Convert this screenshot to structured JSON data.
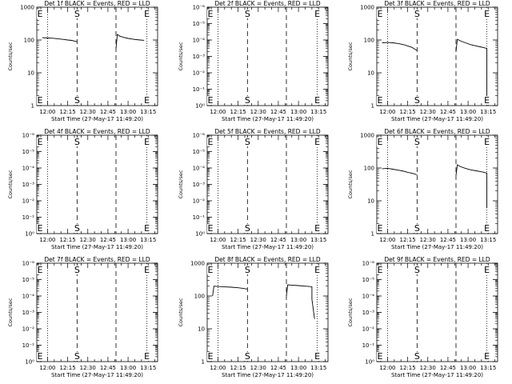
{
  "chart_data": [
    {
      "type": "line",
      "title": "Det 1f BLACK = Events, RED = LLD",
      "xlabel": "Start Time (27-May-17 11:49:20)",
      "ylabel": "Counts/sec",
      "yscale": "log",
      "ylim": [
        1,
        1000
      ],
      "yticks": [
        "1",
        "10",
        "100",
        "1000"
      ],
      "xlim": [
        "11:52",
        "13:22"
      ],
      "xticks": [
        "12:00",
        "12:15",
        "12:30",
        "12:45",
        "13:00",
        "13:15"
      ],
      "dotted_lines": [
        "12:00",
        "13:14"
      ],
      "dashed_lines": [
        "12:22",
        "12:51"
      ],
      "markers": [
        {
          "label": "E",
          "x": "11:52"
        },
        {
          "label": "S",
          "x": "12:22"
        },
        {
          "label": "E",
          "x": "13:14"
        }
      ],
      "series": [
        {
          "color": "#000000",
          "x": [
            "11:56",
            "12:00",
            "12:04",
            "12:08",
            "12:12",
            "12:15",
            "12:18",
            "12:20",
            "12:22"
          ],
          "y": [
            118,
            115,
            113,
            108,
            104,
            100,
            97,
            93,
            89
          ]
        },
        {
          "color": "#000000",
          "x": [
            "12:51",
            "12:52",
            "12:54",
            "12:57",
            "13:00",
            "13:03",
            "13:06",
            "13:09",
            "13:12"
          ],
          "y": [
            55,
            148,
            130,
            120,
            112,
            107,
            103,
            100,
            98
          ]
        }
      ]
    },
    {
      "type": "line",
      "title": "Det 2f BLACK = Events, RED = LLD",
      "xlabel": "Start Time (27-May-17 11:49:20)",
      "ylabel": "Counts/sec",
      "yscale": "log",
      "ylim": [
        1,
        1000000
      ],
      "yticks": [
        "10⁰",
        "10⁻¹",
        "10⁻²",
        "10⁻³",
        "10⁻⁴",
        "10⁻⁵",
        "10⁻⁶"
      ],
      "xlim": [
        "11:52",
        "13:22"
      ],
      "xticks": [
        "12:00",
        "12:15",
        "12:30",
        "12:45",
        "13:00",
        "13:15"
      ],
      "dotted_lines": [
        "12:00",
        "13:14"
      ],
      "dashed_lines": [
        "12:22",
        "12:51"
      ],
      "markers": [
        {
          "label": "E",
          "x": "11:52"
        },
        {
          "label": "S",
          "x": "12:22"
        },
        {
          "label": "E",
          "x": "13:14"
        }
      ],
      "series": []
    },
    {
      "type": "line",
      "title": "Det 3f BLACK = Events, RED = LLD",
      "xlabel": "Start Time (27-May-17 11:49:20)",
      "ylabel": "Counts/sec",
      "yscale": "log",
      "ylim": [
        1,
        1000
      ],
      "yticks": [
        "1",
        "10",
        "100",
        "1000"
      ],
      "xlim": [
        "11:52",
        "13:22"
      ],
      "xticks": [
        "12:00",
        "12:15",
        "12:30",
        "12:45",
        "13:00",
        "13:15"
      ],
      "dotted_lines": [
        "12:00",
        "13:14"
      ],
      "dashed_lines": [
        "12:22",
        "12:51"
      ],
      "markers": [
        {
          "label": "E",
          "x": "11:52"
        },
        {
          "label": "S",
          "x": "12:22"
        },
        {
          "label": "E",
          "x": "13:14"
        }
      ],
      "series": [
        {
          "color": "#000000",
          "x": [
            "11:56",
            "12:00",
            "12:04",
            "12:08",
            "12:12",
            "12:15",
            "12:18",
            "12:20",
            "12:22"
          ],
          "y": [
            82,
            84,
            82,
            78,
            72,
            66,
            60,
            54,
            48
          ]
        },
        {
          "color": "#000000",
          "x": [
            "12:51",
            "12:52",
            "12:54",
            "12:58",
            "13:02",
            "13:06",
            "13:09",
            "13:12",
            "13:14",
            "13:14"
          ],
          "y": [
            45,
            105,
            95,
            82,
            72,
            66,
            62,
            58,
            55,
            1
          ]
        }
      ]
    },
    {
      "type": "line",
      "title": "Det 4f BLACK = Events, RED = LLD",
      "xlabel": "Start Time (27-May-17 11:49:20)",
      "ylabel": "Counts/sec",
      "yscale": "log",
      "ylim": [
        1,
        1000000
      ],
      "yticks": [
        "10⁰",
        "10⁻¹",
        "10⁻²",
        "10⁻³",
        "10⁻⁴",
        "10⁻⁵",
        "10⁻⁶"
      ],
      "xlim": [
        "11:52",
        "13:22"
      ],
      "xticks": [
        "12:00",
        "12:15",
        "12:30",
        "12:45",
        "13:00",
        "13:15"
      ],
      "dotted_lines": [
        "12:00",
        "13:14"
      ],
      "dashed_lines": [
        "12:22",
        "12:51"
      ],
      "markers": [
        {
          "label": "E",
          "x": "11:52"
        },
        {
          "label": "S",
          "x": "12:22"
        },
        {
          "label": "E",
          "x": "13:14"
        }
      ],
      "series": []
    },
    {
      "type": "line",
      "title": "Det 5f BLACK = Events, RED = LLD",
      "xlabel": "Start Time (27-May-17 11:49:20)",
      "ylabel": "Counts/sec",
      "yscale": "log",
      "ylim": [
        1,
        1000000
      ],
      "yticks": [
        "10⁰",
        "10⁻¹",
        "10⁻²",
        "10⁻³",
        "10⁻⁴",
        "10⁻⁵",
        "10⁻⁶"
      ],
      "xlim": [
        "11:52",
        "13:22"
      ],
      "xticks": [
        "12:00",
        "12:15",
        "12:30",
        "12:45",
        "13:00",
        "13:15"
      ],
      "dotted_lines": [
        "12:00",
        "13:14"
      ],
      "dashed_lines": [
        "12:22",
        "12:51"
      ],
      "markers": [
        {
          "label": "E",
          "x": "11:52"
        },
        {
          "label": "S",
          "x": "12:22"
        },
        {
          "label": "E",
          "x": "13:14"
        }
      ],
      "series": []
    },
    {
      "type": "line",
      "title": "Det 6f BLACK = Events, RED = LLD",
      "xlabel": "Start Time (27-May-17 11:49:20)",
      "ylabel": "Counts/sec",
      "yscale": "log",
      "ylim": [
        1,
        1000
      ],
      "yticks": [
        "1",
        "10",
        "100",
        "1000"
      ],
      "xlim": [
        "11:52",
        "13:22"
      ],
      "xticks": [
        "12:00",
        "12:15",
        "12:30",
        "12:45",
        "13:00",
        "13:15"
      ],
      "dotted_lines": [
        "12:00",
        "13:14"
      ],
      "dashed_lines": [
        "12:22",
        "12:51"
      ],
      "markers": [
        {
          "label": "E",
          "x": "11:52"
        },
        {
          "label": "S",
          "x": "12:22"
        },
        {
          "label": "E",
          "x": "13:14"
        }
      ],
      "series": [
        {
          "color": "#000000",
          "x": [
            "11:56",
            "12:00",
            "12:04",
            "12:08",
            "12:12",
            "12:15",
            "12:18",
            "12:20",
            "12:22"
          ],
          "y": [
            95,
            98,
            92,
            86,
            80,
            74,
            70,
            66,
            62
          ]
        },
        {
          "color": "#000000",
          "x": [
            "12:51",
            "12:52",
            "12:54",
            "12:58",
            "13:02",
            "13:06",
            "13:09",
            "13:12",
            "13:14",
            "13:14"
          ],
          "y": [
            60,
            125,
            112,
            98,
            88,
            82,
            78,
            74,
            70,
            6
          ]
        }
      ]
    },
    {
      "type": "line",
      "title": "Det 7f BLACK = Events, RED = LLD",
      "xlabel": "Start Time (27-May-17 11:49:20)",
      "ylabel": "Counts/sec",
      "yscale": "log",
      "ylim": [
        1,
        1000000
      ],
      "yticks": [
        "10⁰",
        "10⁻¹",
        "10⁻²",
        "10⁻³",
        "10⁻⁴",
        "10⁻⁵",
        "10⁻⁶"
      ],
      "xlim": [
        "11:52",
        "13:22"
      ],
      "xticks": [
        "12:00",
        "12:15",
        "12:30",
        "12:45",
        "13:00",
        "13:15"
      ],
      "dotted_lines": [
        "12:00",
        "13:14"
      ],
      "dashed_lines": [
        "12:22",
        "12:51"
      ],
      "markers": [
        {
          "label": "E",
          "x": "11:52"
        },
        {
          "label": "S",
          "x": "12:22"
        },
        {
          "label": "E",
          "x": "13:14"
        }
      ],
      "series": []
    },
    {
      "type": "line",
      "title": "Det 8f BLACK = Events, RED = LLD",
      "xlabel": "Start Time (27-May-17 11:49:20)",
      "ylabel": "Counts/sec",
      "yscale": "log",
      "ylim": [
        1,
        1000
      ],
      "yticks": [
        "1",
        "10",
        "100",
        "1000"
      ],
      "xlim": [
        "11:52",
        "13:22"
      ],
      "xticks": [
        "12:00",
        "12:15",
        "12:30",
        "12:45",
        "13:00",
        "13:15"
      ],
      "dotted_lines": [
        "12:00",
        "13:14"
      ],
      "dashed_lines": [
        "12:22",
        "12:51"
      ],
      "markers": [
        {
          "label": "E",
          "x": "11:52"
        },
        {
          "label": "S",
          "x": "12:22"
        },
        {
          "label": "E",
          "x": "13:14"
        }
      ],
      "series": [
        {
          "color": "#000000",
          "x": [
            "11:56",
            "11:57",
            "12:00",
            "12:05",
            "12:10",
            "12:15",
            "12:18",
            "12:20",
            "12:22"
          ],
          "y": [
            100,
            200,
            195,
            190,
            185,
            178,
            172,
            168,
            162
          ]
        },
        {
          "color": "#000000",
          "x": [
            "12:51",
            "12:52",
            "12:55",
            "13:00",
            "13:05",
            "13:08",
            "13:10",
            "13:10",
            "13:12"
          ],
          "y": [
            100,
            220,
            215,
            208,
            200,
            195,
            190,
            80,
            20
          ]
        }
      ]
    },
    {
      "type": "line",
      "title": "Det 9f BLACK = Events, RED = LLD",
      "xlabel": "Start Time (27-May-17 11:49:20)",
      "ylabel": "Counts/sec",
      "yscale": "log",
      "ylim": [
        1,
        1000000
      ],
      "yticks": [
        "10⁰",
        "10⁻¹",
        "10⁻²",
        "10⁻³",
        "10⁻⁴",
        "10⁻⁵",
        "10⁻⁶"
      ],
      "xlim": [
        "11:52",
        "13:22"
      ],
      "xticks": [
        "12:00",
        "12:15",
        "12:30",
        "12:45",
        "13:00",
        "13:15"
      ],
      "dotted_lines": [
        "12:00",
        "13:14"
      ],
      "dashed_lines": [
        "12:22",
        "12:51"
      ],
      "markers": [
        {
          "label": "E",
          "x": "11:52"
        },
        {
          "label": "S",
          "x": "12:22"
        },
        {
          "label": "E",
          "x": "13:14"
        }
      ],
      "series": []
    }
  ]
}
